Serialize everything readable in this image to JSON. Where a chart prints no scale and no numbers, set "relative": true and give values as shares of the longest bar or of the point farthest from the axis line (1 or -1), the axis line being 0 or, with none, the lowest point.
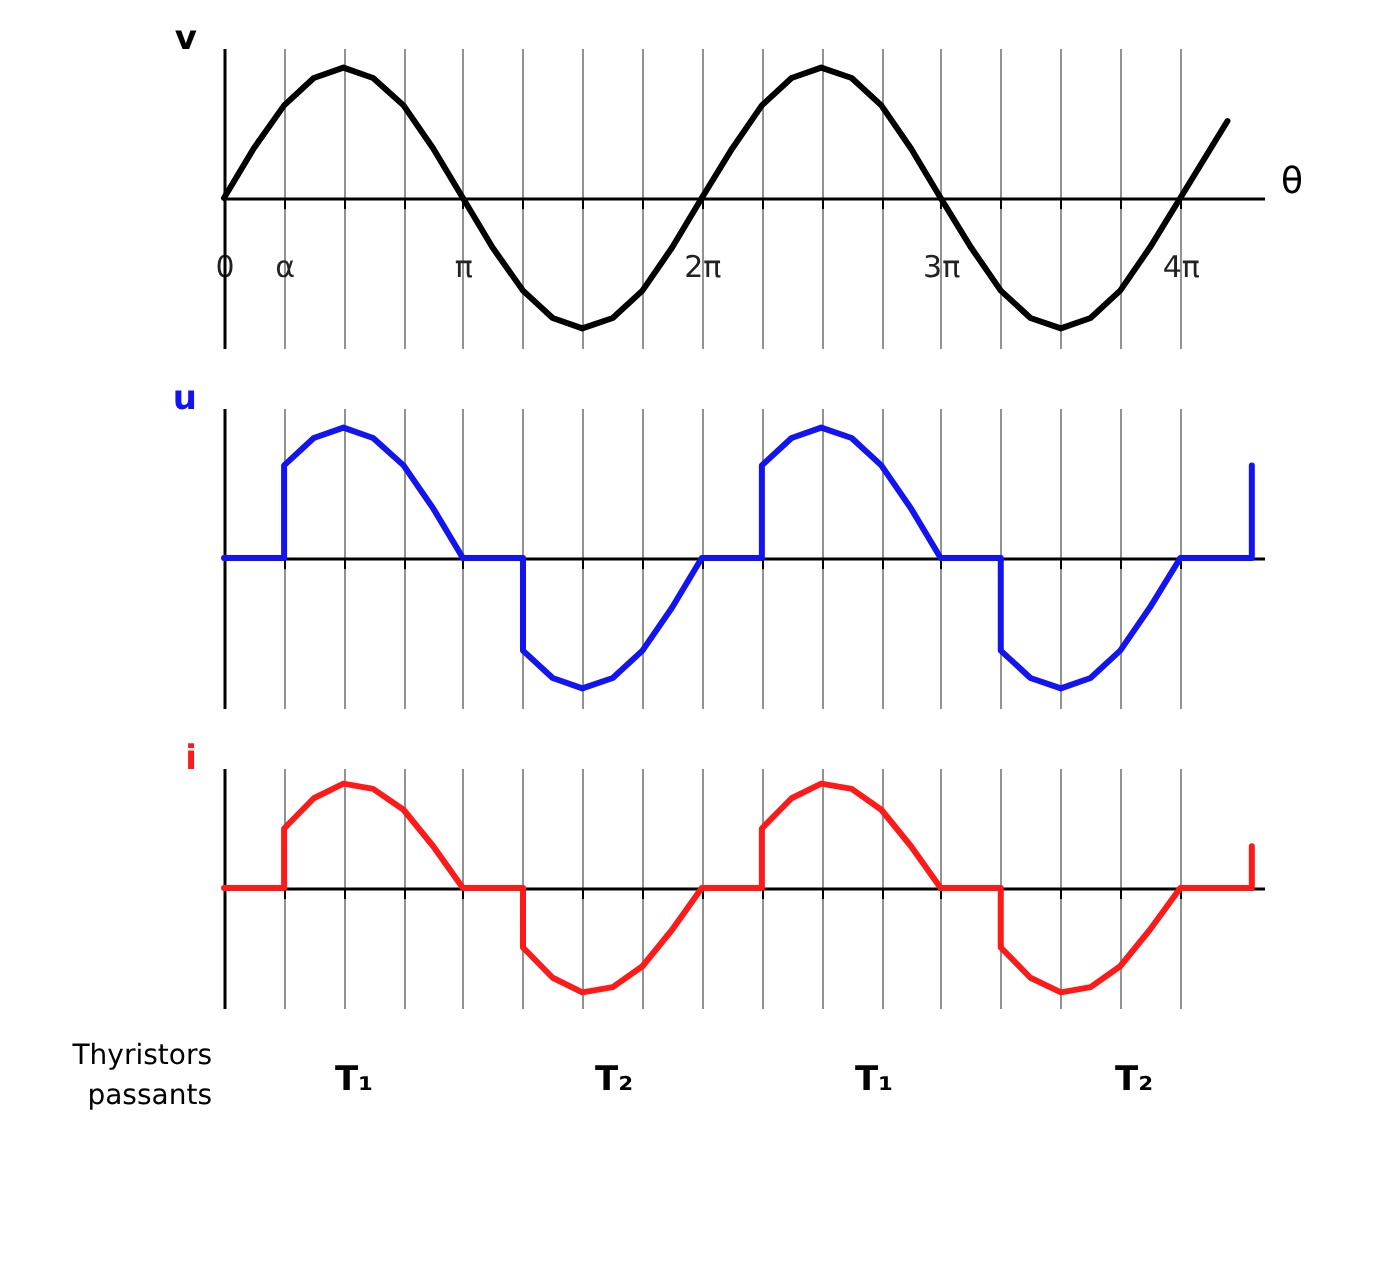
{
  "chart_data": [
    {
      "type": "line",
      "relative": true,
      "ylabel": "v",
      "xlabel": "θ",
      "grid": "x",
      "xlim": [
        0,
        13.67
      ],
      "xticks": [
        {
          "value": 0,
          "label": "0"
        },
        {
          "value": 0.79,
          "label": "α"
        },
        {
          "value": 1.57,
          "label": null
        },
        {
          "value": 2.36,
          "label": null
        },
        {
          "value": 3.14,
          "label": "π"
        },
        {
          "value": 3.93,
          "label": null
        },
        {
          "value": 4.71,
          "label": null
        },
        {
          "value": 5.5,
          "label": null
        },
        {
          "value": 6.28,
          "label": "2π"
        },
        {
          "value": 7.07,
          "label": null
        },
        {
          "value": 7.85,
          "label": null
        },
        {
          "value": 8.64,
          "label": null
        },
        {
          "value": 9.42,
          "label": "3π"
        },
        {
          "value": 10.21,
          "label": null
        },
        {
          "value": 11,
          "label": null
        },
        {
          "value": 11.78,
          "label": null
        },
        {
          "value": 12.57,
          "label": "4π"
        }
      ],
      "series": [
        {
          "color": "#000000",
          "x": [
            0,
            0.39,
            0.79,
            1.18,
            1.57,
            1.96,
            2.36,
            2.75,
            3.14,
            3.53,
            3.93,
            4.32,
            4.71,
            5.11,
            5.5,
            5.89,
            6.28,
            6.68,
            7.07,
            7.46,
            7.85,
            8.25,
            8.64,
            9.03,
            9.42,
            9.82,
            10.21,
            10.6,
            11,
            11.39,
            11.78,
            12.17,
            12.57,
            13.19
          ],
          "values": [
            0,
            0.38,
            0.71,
            0.92,
            1,
            0.92,
            0.71,
            0.38,
            0,
            -0.38,
            -0.71,
            -0.92,
            -1,
            -0.92,
            -0.71,
            -0.38,
            0,
            0.38,
            0.71,
            0.92,
            1,
            0.92,
            0.71,
            0.38,
            0,
            -0.38,
            -0.71,
            -0.92,
            -1,
            -0.92,
            -0.71,
            -0.38,
            0,
            0.59
          ]
        }
      ]
    },
    {
      "type": "line",
      "relative": true,
      "ylabel": "u",
      "grid": "x",
      "tick_labels": false,
      "xlim": [
        0,
        13.67
      ],
      "xticks": [
        0,
        0.79,
        1.57,
        2.36,
        3.14,
        3.93,
        4.71,
        5.5,
        6.28,
        7.07,
        7.85,
        8.64,
        9.42,
        10.21,
        11,
        11.78,
        12.57
      ],
      "series": [
        {
          "color": "#1414f0",
          "x": [
            0,
            0.79,
            0.79,
            1.18,
            1.57,
            1.96,
            2.36,
            2.75,
            3.14,
            3.93,
            3.93,
            4.32,
            4.71,
            5.11,
            5.5,
            5.89,
            6.28,
            7.07,
            7.07,
            7.46,
            7.85,
            8.25,
            8.64,
            9.03,
            9.42,
            10.21,
            10.21,
            10.6,
            11,
            11.39,
            11.78,
            12.17,
            12.57,
            13.51,
            13.51
          ],
          "values": [
            0,
            0,
            0.71,
            0.92,
            1,
            0.92,
            0.71,
            0.38,
            0,
            0,
            -0.71,
            -0.92,
            -1,
            -0.92,
            -0.71,
            -0.38,
            0,
            0,
            0.71,
            0.92,
            1,
            0.92,
            0.71,
            0.38,
            0,
            0,
            -0.71,
            -0.92,
            -1,
            -0.92,
            -0.71,
            -0.38,
            0,
            0,
            0.71
          ]
        }
      ]
    },
    {
      "type": "line",
      "relative": true,
      "ylabel": "i",
      "grid": "x",
      "tick_labels": false,
      "xlim": [
        0,
        13.67
      ],
      "xticks": [
        0,
        0.79,
        1.57,
        2.36,
        3.14,
        3.93,
        4.71,
        5.5,
        6.28,
        7.07,
        7.85,
        8.64,
        9.42,
        10.21,
        11,
        11.78,
        12.57
      ],
      "annotations": [
        "Thyristors passants",
        "T₁",
        "T₂",
        "T₁",
        "T₂"
      ],
      "series": [
        {
          "color": "#ff1a1a",
          "x": [
            0,
            0.79,
            0.79,
            1.18,
            1.57,
            1.96,
            2.36,
            2.75,
            3.14,
            3.93,
            3.93,
            4.32,
            4.71,
            5.11,
            5.5,
            5.89,
            6.28,
            7.07,
            7.07,
            7.46,
            7.85,
            8.25,
            8.64,
            9.03,
            9.42,
            10.21,
            10.21,
            10.6,
            11,
            11.39,
            11.78,
            12.17,
            12.57,
            13.51,
            13.51
          ],
          "values": [
            0,
            0,
            0.57,
            0.86,
            1,
            0.95,
            0.75,
            0.4,
            0,
            0,
            -0.57,
            -0.86,
            -1,
            -0.95,
            -0.75,
            -0.4,
            0,
            0,
            0.57,
            0.86,
            1,
            0.95,
            0.75,
            0.4,
            0,
            0,
            -0.57,
            -0.86,
            -1,
            -0.95,
            -0.75,
            -0.4,
            0,
            0,
            0.4
          ]
        }
      ]
    }
  ]
}
